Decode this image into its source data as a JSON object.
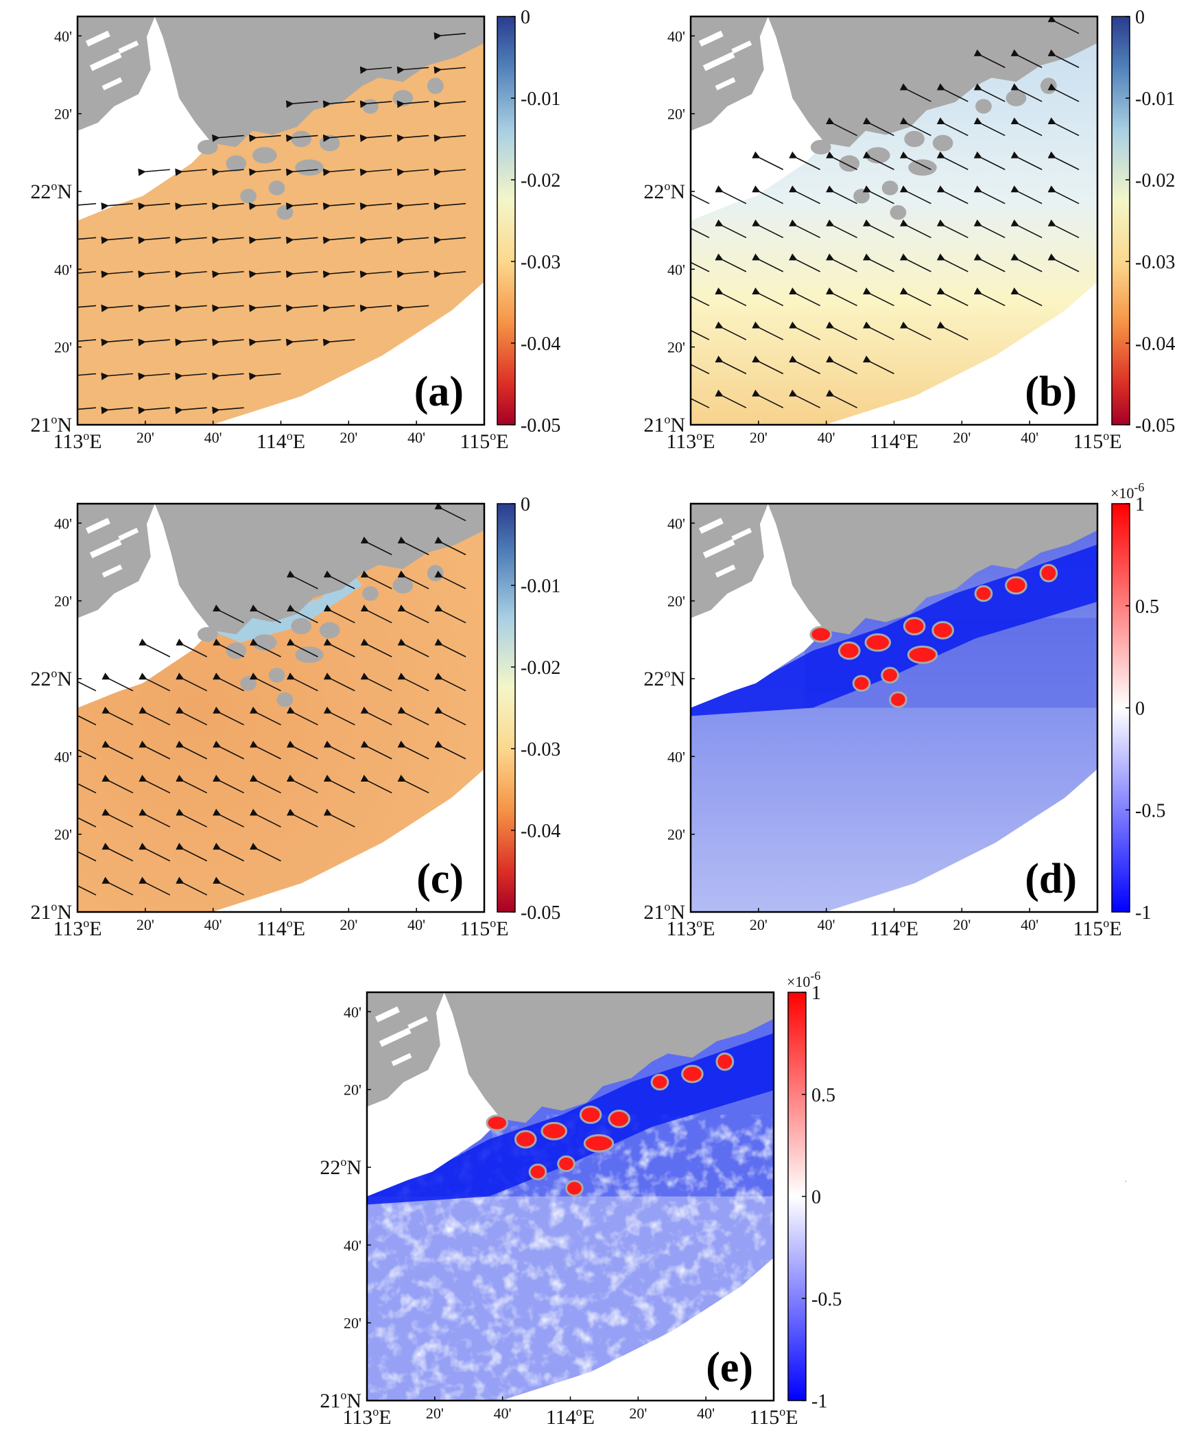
{
  "lat_labels": [
    "21ᴼN",
    "20'",
    "40'",
    "22ᴼN",
    "20'",
    "40'"
  ],
  "lon_labels": [
    "113ᴼE",
    "20'",
    "40'",
    "114ᴼE",
    "20'",
    "40'",
    "115ᴼE"
  ],
  "lat_labels_raw": [
    {
      "deg": "21",
      "suffix": "N",
      "major": true
    },
    {
      "text": "20'"
    },
    {
      "text": "40'"
    },
    {
      "deg": "22",
      "suffix": "N",
      "major": true
    },
    {
      "text": "20'"
    },
    {
      "text": "40'"
    }
  ],
  "degree_symbol": "o",
  "colors": {
    "land": "#a9a9a9",
    "orange": "#f3b978",
    "blue_sea": "#b9c6f2",
    "red": "#ff1a1a",
    "deep_blue": "#0a1ff0",
    "arrow": "#111111"
  },
  "panels": [
    {
      "id": "a",
      "label": "(a)",
      "field": "uniform-orange",
      "arrow_direction": "west",
      "colorbar": {
        "ticks": [
          "0",
          "-0.01",
          "-0.02",
          "-0.03",
          "-0.04",
          "-0.05"
        ],
        "scale": "",
        "palette": "yellow-red-blue"
      }
    },
    {
      "id": "b",
      "label": "(b)",
      "field": "gradient-blue-to-yellow",
      "arrow_direction": "northwest",
      "colorbar": {
        "ticks": [
          "0",
          "-0.01",
          "-0.02",
          "-0.03",
          "-0.04",
          "-0.05"
        ],
        "scale": "",
        "palette": "yellow-red-blue"
      }
    },
    {
      "id": "c",
      "label": "(c)",
      "field": "orange-with-blue-estuary",
      "arrow_direction": "northwest",
      "colorbar": {
        "ticks": [
          "0",
          "-0.01",
          "-0.02",
          "-0.03",
          "-0.04",
          "-0.05"
        ],
        "scale": "",
        "palette": "yellow-red-blue"
      }
    },
    {
      "id": "d",
      "label": "(d)",
      "field": "blue-with-red-coast",
      "arrow_direction": "none",
      "colorbar": {
        "ticks": [
          "1",
          "0.5",
          "0",
          "-0.5",
          "-1"
        ],
        "scale_base": "×10",
        "scale_exp": "-6",
        "palette": "blue-white-red"
      }
    },
    {
      "id": "e",
      "label": "(e)",
      "field": "mottled-blue-with-red-coast",
      "arrow_direction": "none",
      "colorbar": {
        "ticks": [
          "1",
          "0.5",
          "0",
          "-0.5",
          "-1"
        ],
        "scale_base": "×10",
        "scale_exp": "-6",
        "palette": "blue-white-red"
      }
    }
  ]
}
